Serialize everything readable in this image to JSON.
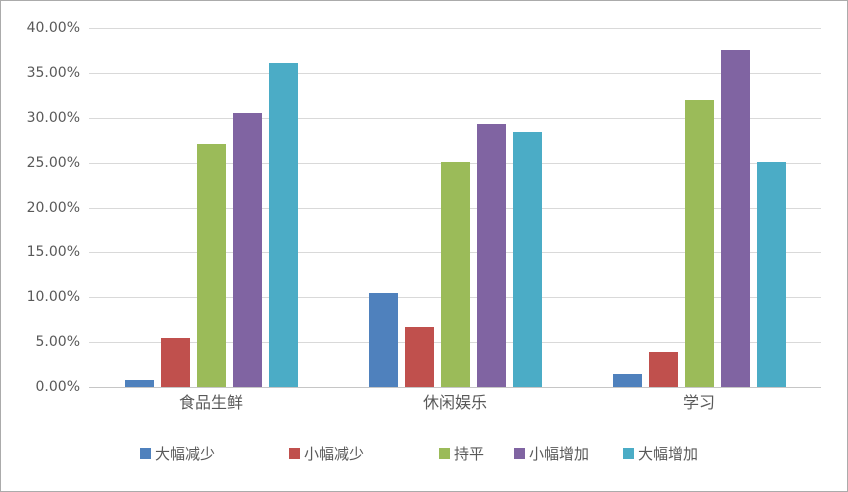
{
  "chart_data": {
    "type": "bar",
    "title": "",
    "xlabel": "",
    "ylabel": "",
    "categories": [
      "食品生鲜",
      "休闲娱乐",
      "学习"
    ],
    "series": [
      {
        "key": "decrease-large",
        "name": "大幅减少",
        "color": "#4F81BD",
        "values": [
          0.8,
          10.5,
          1.4
        ]
      },
      {
        "key": "decrease-small",
        "name": "小幅减少",
        "color": "#C0504D",
        "values": [
          5.5,
          6.7,
          3.9
        ]
      },
      {
        "key": "flat",
        "name": "持平",
        "color": "#9BBB59",
        "values": [
          27.1,
          25.1,
          32.0
        ]
      },
      {
        "key": "increase-small",
        "name": "小幅增加",
        "color": "#8064A2",
        "values": [
          30.5,
          29.3,
          37.6
        ]
      },
      {
        "key": "increase-large",
        "name": "大幅增加",
        "color": "#4BACC6",
        "values": [
          36.1,
          28.4,
          25.1
        ]
      }
    ],
    "ylim": [
      0,
      40
    ],
    "ytick_step": 5,
    "ytick_labels": [
      "0.00%",
      "5.00%",
      "10.00%",
      "15.00%",
      "20.00%",
      "25.00%",
      "30.00%",
      "35.00%",
      "40.00%"
    ],
    "grid": true,
    "legend_position": "bottom",
    "value_unit": "percent"
  },
  "colors": {
    "text": "#595959",
    "gridline": "#D9D9D9",
    "zero_line": "#C6C6C6",
    "frame_border": "#ABABAB",
    "background": "#FFFFFF"
  }
}
